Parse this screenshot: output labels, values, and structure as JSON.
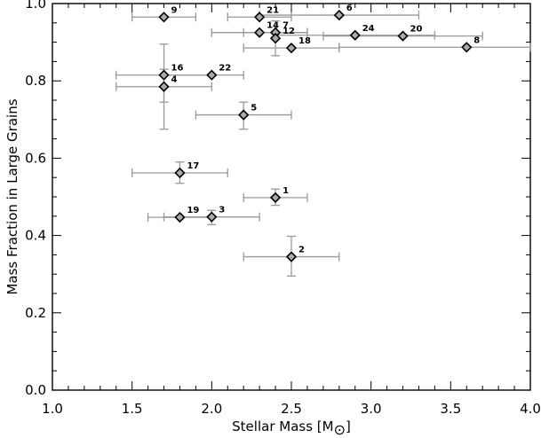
{
  "chart_data": {
    "type": "scatter",
    "title": "",
    "xlabel": "Stellar Mass [M",
    "xlabel_symbol": "⊙",
    "xlabel_close": "]",
    "ylabel": "Mass Fraction in Large Grains",
    "xlim": [
      1.0,
      4.0
    ],
    "ylim": [
      0.0,
      1.0
    ],
    "x_ticks": [
      1.0,
      1.5,
      2.0,
      2.5,
      3.0,
      3.5,
      4.0
    ],
    "x_tick_labels": [
      "1.0",
      "1.5",
      "2.0",
      "2.5",
      "3.0",
      "3.5",
      "4.0"
    ],
    "y_ticks": [
      0.0,
      0.2,
      0.4,
      0.6,
      0.8,
      1.0
    ],
    "y_tick_labels": [
      "0.0",
      "0.2",
      "0.4",
      "0.6",
      "0.8",
      "1.0"
    ],
    "grid": false,
    "marker": "diamond",
    "marker_fill": "#aaaaaa",
    "errorbar_color": "#999999",
    "points": [
      {
        "label": "9",
        "x": 1.7,
        "y": 0.965,
        "xerr": [
          1.5,
          1.9
        ]
      },
      {
        "label": "21",
        "x": 2.3,
        "y": 0.965,
        "xerr": [
          2.1,
          2.5
        ]
      },
      {
        "label": "6",
        "x": 2.8,
        "y": 0.97,
        "xerr": [
          2.3,
          3.3
        ]
      },
      {
        "label": "14",
        "x": 2.3,
        "y": 0.925,
        "xerr": [
          2.0,
          2.6
        ]
      },
      {
        "label": "7",
        "x": 2.4,
        "y": 0.925,
        "xerr": [
          2.2,
          2.6
        ]
      },
      {
        "label": "12",
        "x": 2.4,
        "y": 0.91,
        "yerr": [
          0.865,
          0.955
        ]
      },
      {
        "label": "24",
        "x": 2.9,
        "y": 0.918,
        "xerr": [
          2.4,
          3.4
        ]
      },
      {
        "label": "20",
        "x": 3.2,
        "y": 0.916,
        "xerr": [
          2.7,
          3.7
        ]
      },
      {
        "label": "18",
        "x": 2.5,
        "y": 0.885,
        "xerr": [
          2.2,
          2.8
        ]
      },
      {
        "label": "8",
        "x": 3.6,
        "y": 0.887,
        "xerr": [
          2.8,
          4.0
        ]
      },
      {
        "label": "16",
        "x": 1.7,
        "y": 0.815,
        "xerr": [
          1.4,
          2.0
        ],
        "yerr": [
          0.745,
          0.895
        ]
      },
      {
        "label": "22",
        "x": 2.0,
        "y": 0.815,
        "xerr": [
          1.7,
          2.2
        ]
      },
      {
        "label": "4",
        "x": 1.7,
        "y": 0.785,
        "xerr": [
          1.4,
          2.0
        ],
        "yerr": [
          0.675,
          0.83
        ]
      },
      {
        "label": "5",
        "x": 2.2,
        "y": 0.712,
        "xerr": [
          1.9,
          2.5
        ],
        "yerr": [
          0.675,
          0.745
        ]
      },
      {
        "label": "17",
        "x": 1.8,
        "y": 0.562,
        "xerr": [
          1.5,
          2.1
        ],
        "yerr": [
          0.535,
          0.59
        ]
      },
      {
        "label": "1",
        "x": 2.4,
        "y": 0.498,
        "xerr": [
          2.2,
          2.6
        ],
        "yerr": [
          0.478,
          0.52
        ]
      },
      {
        "label": "19",
        "x": 1.8,
        "y": 0.447,
        "xerr": [
          1.6,
          2.0
        ]
      },
      {
        "label": "3",
        "x": 2.0,
        "y": 0.448,
        "xerr": [
          1.7,
          2.3
        ],
        "yerr": [
          0.428,
          0.465
        ]
      },
      {
        "label": "2",
        "x": 2.5,
        "y": 0.345,
        "xerr": [
          2.2,
          2.8
        ],
        "yerr": [
          0.295,
          0.398
        ]
      }
    ]
  }
}
